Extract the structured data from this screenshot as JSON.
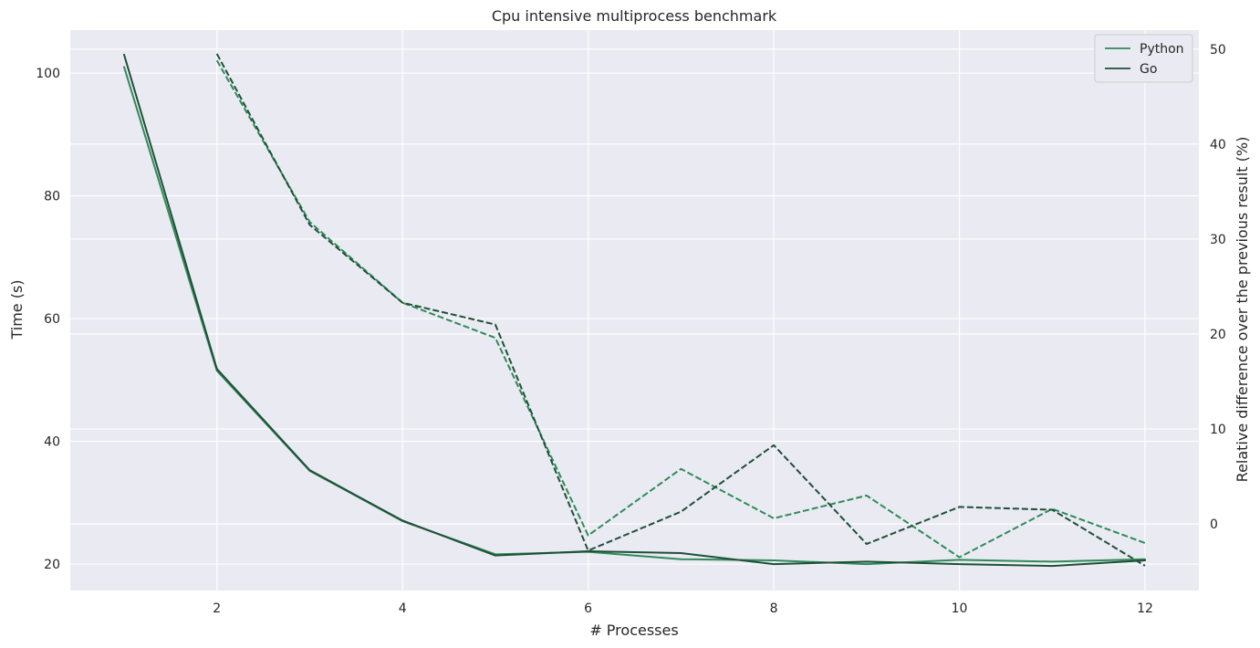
{
  "chart_data": {
    "type": "line",
    "title": "Cpu intensive multiprocess benchmark",
    "xlabel": "# Processes",
    "ylabel": "Time (s)",
    "y2label": "Relative difference over the previous result (%)",
    "x": [
      1,
      2,
      3,
      4,
      5,
      6,
      7,
      8,
      9,
      10,
      11,
      12
    ],
    "xlim": [
      0.42,
      12.58
    ],
    "ylim": [
      15.7,
      107.0
    ],
    "y2lim": [
      -7.0,
      52.0
    ],
    "xticks": [
      2,
      4,
      6,
      8,
      10,
      12
    ],
    "yticks": [
      20,
      40,
      60,
      80,
      100
    ],
    "y2ticks": [
      0,
      10,
      20,
      30,
      40,
      50
    ],
    "grid": true,
    "legend": {
      "placement": "top-right",
      "entries": [
        "Python",
        "Go"
      ]
    },
    "series": [
      {
        "name": "Python",
        "axis": "left",
        "style": "solid",
        "color": "#2e8b57",
        "values": [
          101.0,
          51.5,
          35.2,
          27.0,
          21.6,
          22.0,
          20.8,
          20.6,
          20.0,
          20.7,
          20.4,
          20.8
        ]
      },
      {
        "name": "Go",
        "axis": "left",
        "style": "solid",
        "color": "#1f4f38",
        "values": [
          103.0,
          51.8,
          35.3,
          27.1,
          21.4,
          22.1,
          21.8,
          20.0,
          20.4,
          20.0,
          19.7,
          20.6
        ]
      },
      {
        "name": "",
        "axis": "right",
        "style": "dashed",
        "color": "#2e8b57",
        "values": [
          null,
          48.8,
          31.8,
          23.3,
          19.6,
          -1.2,
          5.8,
          0.6,
          3.0,
          -3.5,
          1.6,
          -2.0
        ]
      },
      {
        "name": "",
        "axis": "right",
        "style": "dashed",
        "color": "#1f4f38",
        "values": [
          null,
          49.5,
          31.5,
          23.3,
          21.0,
          -2.8,
          1.3,
          8.3,
          -2.1,
          1.8,
          1.5,
          -4.4
        ]
      }
    ]
  },
  "colors": {
    "plot_background": "#eaeaf2",
    "grid": "#ffffff",
    "text": "#262626"
  }
}
